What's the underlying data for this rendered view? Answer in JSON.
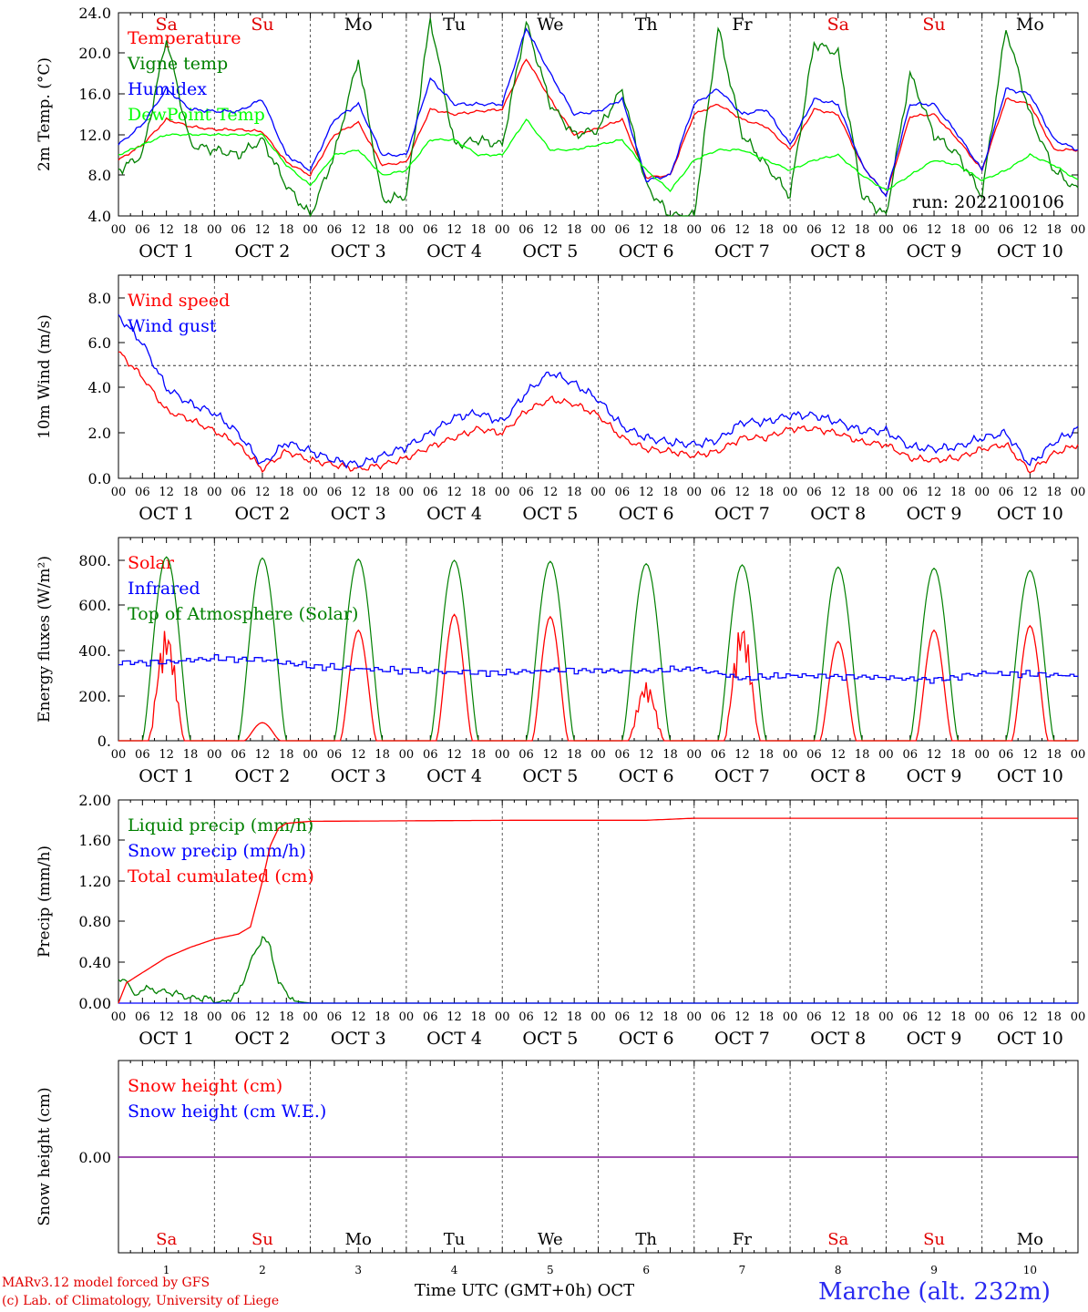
{
  "chart_data": [
    {
      "type": "line",
      "ylabel": "2m Temp. (°C)",
      "yticks": [
        "24.0",
        "20.0",
        "16.0",
        "12.0",
        "8.0",
        "4.0"
      ],
      "ylim": [
        4,
        24
      ],
      "run_label": "run: 2022100106",
      "grid": "vertical dotted lines at day boundaries",
      "legend_position": "top-left",
      "x_unit": "hours since Oct 1 00 UTC",
      "series": [
        {
          "name": "Temperature",
          "color": "#ff0000",
          "x": [
            0,
            6,
            12,
            18,
            24,
            30,
            36,
            42,
            48,
            54,
            60,
            66,
            72,
            78,
            84,
            90,
            96,
            102,
            108,
            114,
            120,
            126,
            132,
            138,
            144,
            150,
            156,
            162,
            168,
            174,
            180,
            186,
            192,
            198,
            204,
            210,
            216,
            222,
            228,
            234,
            240
          ],
          "y": [
            9.5,
            11.0,
            13.5,
            12.8,
            12.5,
            12.5,
            12.3,
            9.3,
            8.0,
            12.0,
            13.2,
            9.0,
            9.3,
            14.5,
            14.0,
            14.3,
            14.5,
            19.5,
            15.5,
            12.0,
            12.6,
            13.5,
            7.8,
            8.0,
            14.0,
            15.0,
            13.5,
            12.8,
            10.5,
            14.5,
            14.0,
            9.0,
            6.0,
            13.8,
            14.0,
            11.5,
            8.5,
            15.5,
            15.0,
            10.5,
            10.5
          ]
        },
        {
          "name": "Vigne temp",
          "color": "#008000",
          "x": [
            0,
            6,
            12,
            18,
            24,
            30,
            36,
            42,
            48,
            54,
            60,
            66,
            72,
            78,
            84,
            90,
            96,
            102,
            108,
            114,
            120,
            126,
            132,
            138,
            144,
            150,
            156,
            162,
            168,
            174,
            180,
            186,
            192,
            198,
            204,
            210,
            216,
            222,
            228,
            234,
            240
          ],
          "y": [
            8.5,
            10.0,
            21.5,
            11.0,
            10.5,
            10.0,
            11.5,
            7.0,
            4.0,
            10.0,
            19.5,
            5.5,
            6.0,
            23.5,
            11.0,
            11.5,
            11.0,
            23.0,
            15.0,
            12.0,
            12.5,
            16.5,
            7.0,
            4.0,
            4.0,
            22.5,
            12.0,
            9.0,
            6.0,
            21.0,
            20.0,
            6.0,
            4.0,
            18.0,
            12.0,
            10.0,
            6.0,
            22.5,
            14.0,
            8.5,
            6.5
          ]
        },
        {
          "name": "Humidex",
          "color": "#0000ff",
          "x": [
            0,
            6,
            12,
            18,
            24,
            30,
            36,
            42,
            48,
            54,
            60,
            66,
            72,
            78,
            84,
            90,
            96,
            102,
            108,
            114,
            120,
            126,
            132,
            138,
            144,
            150,
            156,
            162,
            168,
            174,
            180,
            186,
            192,
            198,
            204,
            210,
            216,
            222,
            228,
            234,
            240
          ],
          "y": [
            11.0,
            13.0,
            16.5,
            14.5,
            14.3,
            14.3,
            15.5,
            10.0,
            8.5,
            13.5,
            15.0,
            10.0,
            10.0,
            17.5,
            15.0,
            15.0,
            15.0,
            22.5,
            18.0,
            14.0,
            14.3,
            15.5,
            7.5,
            8.0,
            15.0,
            16.5,
            14.0,
            14.5,
            11.0,
            15.5,
            15.0,
            9.0,
            6.0,
            15.0,
            15.0,
            12.0,
            8.5,
            16.5,
            16.0,
            11.5,
            10.5
          ]
        },
        {
          "name": "DewPoint Temp",
          "color": "#00ff00",
          "x": [
            0,
            6,
            12,
            18,
            24,
            30,
            36,
            42,
            48,
            54,
            60,
            66,
            72,
            78,
            84,
            90,
            96,
            102,
            108,
            114,
            120,
            126,
            132,
            138,
            144,
            150,
            156,
            162,
            168,
            174,
            180,
            186,
            192,
            198,
            204,
            210,
            216,
            222,
            228,
            234,
            240
          ],
          "y": [
            10.0,
            11.0,
            12.0,
            12.0,
            12.0,
            12.0,
            12.0,
            9.0,
            7.0,
            10.0,
            10.5,
            8.0,
            8.5,
            11.5,
            11.5,
            10.0,
            10.0,
            13.5,
            10.5,
            10.5,
            11.0,
            11.5,
            8.5,
            6.5,
            9.5,
            10.5,
            10.5,
            9.5,
            8.5,
            9.5,
            10.0,
            8.0,
            6.5,
            8.0,
            9.5,
            9.0,
            7.5,
            8.5,
            10.0,
            9.0,
            7.5
          ]
        }
      ]
    },
    {
      "type": "line",
      "ylabel": "10m Wind (m/s)",
      "yticks": [
        "8.0",
        "6.0",
        "4.0",
        "2.0",
        "0.0"
      ],
      "ylim": [
        0,
        8.8
      ],
      "reference_line": 5.0,
      "legend_position": "top-left",
      "x_unit": "hours since Oct 1 00 UTC",
      "series": [
        {
          "name": "Wind speed",
          "color": "#ff0000",
          "x": [
            0,
            6,
            12,
            18,
            24,
            30,
            36,
            42,
            48,
            54,
            60,
            66,
            72,
            78,
            84,
            90,
            96,
            102,
            108,
            114,
            120,
            126,
            132,
            138,
            144,
            150,
            156,
            162,
            168,
            174,
            180,
            186,
            192,
            198,
            204,
            210,
            216,
            222,
            228,
            234,
            240
          ],
          "y": [
            5.6,
            4.5,
            3.0,
            2.6,
            2.1,
            1.5,
            0.4,
            1.2,
            0.8,
            0.6,
            0.4,
            0.6,
            0.9,
            1.4,
            1.8,
            2.2,
            2.0,
            3.0,
            3.5,
            3.3,
            2.8,
            1.8,
            1.3,
            1.2,
            1.0,
            1.2,
            1.8,
            1.8,
            2.2,
            2.2,
            2.0,
            1.6,
            1.5,
            0.9,
            0.8,
            0.9,
            1.3,
            1.5,
            0.3,
            1.1,
            1.5
          ]
        },
        {
          "name": "Wind gust",
          "color": "#0000ff",
          "x": [
            0,
            6,
            12,
            18,
            24,
            30,
            36,
            42,
            48,
            54,
            60,
            66,
            72,
            78,
            84,
            90,
            96,
            102,
            108,
            114,
            120,
            126,
            132,
            138,
            144,
            150,
            156,
            162,
            168,
            174,
            180,
            186,
            192,
            198,
            204,
            210,
            216,
            222,
            228,
            234,
            240
          ],
          "y": [
            7.2,
            6.0,
            4.0,
            3.3,
            2.9,
            2.0,
            0.6,
            1.6,
            1.2,
            0.8,
            0.6,
            1.0,
            1.4,
            2.0,
            2.7,
            2.9,
            2.5,
            3.8,
            4.7,
            4.2,
            3.5,
            2.3,
            1.8,
            1.6,
            1.5,
            1.7,
            2.5,
            2.5,
            2.8,
            2.8,
            2.5,
            2.1,
            2.1,
            1.4,
            1.3,
            1.4,
            1.8,
            2.0,
            0.6,
            1.6,
            2.2
          ]
        }
      ]
    },
    {
      "type": "line",
      "ylabel": "Energy fluxes (W/m²)",
      "yticks": [
        "800.",
        "600.",
        "400.",
        "200.",
        "0."
      ],
      "ylim": [
        0,
        880
      ],
      "legend_position": "top-left",
      "x_unit": "hours since Oct 1 00 UTC",
      "series": [
        {
          "name": "Solar",
          "color": "#ff0000",
          "peaks": [
            {
              "day": 1,
              "value": 500
            },
            {
              "day": 2,
              "value": 80
            },
            {
              "day": 3,
              "value": 490
            },
            {
              "day": 4,
              "value": 560
            },
            {
              "day": 5,
              "value": 550
            },
            {
              "day": 6,
              "value": 260
            },
            {
              "day": 7,
              "value": 530
            },
            {
              "day": 8,
              "value": 440
            },
            {
              "day": 9,
              "value": 490
            },
            {
              "day": 10,
              "value": 510
            }
          ]
        },
        {
          "name": "Infrared",
          "color": "#0000ff",
          "x": [
            0,
            12,
            24,
            36,
            48,
            60,
            72,
            84,
            96,
            108,
            120,
            132,
            144,
            156,
            168,
            180,
            192,
            204,
            216,
            228,
            240
          ],
          "y": [
            345,
            350,
            365,
            360,
            330,
            320,
            310,
            305,
            300,
            315,
            310,
            310,
            320,
            275,
            290,
            285,
            280,
            270,
            300,
            295,
            285
          ]
        },
        {
          "name": "Top of Atmosphere (Solar)",
          "color": "#008000",
          "peaks": [
            {
              "day": 1,
              "value": 815
            },
            {
              "day": 2,
              "value": 810
            },
            {
              "day": 3,
              "value": 805
            },
            {
              "day": 4,
              "value": 800
            },
            {
              "day": 5,
              "value": 795
            },
            {
              "day": 6,
              "value": 785
            },
            {
              "day": 7,
              "value": 780
            },
            {
              "day": 8,
              "value": 770
            },
            {
              "day": 9,
              "value": 765
            },
            {
              "day": 10,
              "value": 755
            }
          ]
        }
      ]
    },
    {
      "type": "line",
      "ylabel": "Precip (mm/h)",
      "yticks": [
        "2.00",
        "1.60",
        "1.20",
        "0.80",
        "0.40",
        "0.00"
      ],
      "ylim": [
        0,
        2
      ],
      "legend_position": "top-left",
      "x_unit": "hours since Oct 1 00 UTC",
      "series": [
        {
          "name": "Liquid precip (mm/h)",
          "color": "#008000",
          "x": [
            0,
            2,
            4,
            6,
            10,
            14,
            18,
            22,
            26,
            30,
            33,
            36,
            38,
            40,
            44,
            48,
            240
          ],
          "y": [
            0.2,
            0.25,
            0.05,
            0.15,
            0.12,
            0.1,
            0.05,
            0.05,
            0.0,
            0.1,
            0.4,
            0.65,
            0.55,
            0.2,
            0.02,
            0.0,
            0.0
          ]
        },
        {
          "name": "Snow precip (mm/h)",
          "color": "#0000ff",
          "x": [
            0,
            240
          ],
          "y": [
            0,
            0
          ]
        },
        {
          "name": "Total cumulated (cm)",
          "color": "#ff0000",
          "x": [
            0,
            2,
            6,
            12,
            18,
            24,
            30,
            33,
            36,
            38,
            40,
            42,
            48,
            100,
            132,
            144,
            240
          ],
          "y": [
            0,
            0.2,
            0.3,
            0.45,
            0.55,
            0.63,
            0.68,
            0.75,
            1.2,
            1.55,
            1.72,
            1.77,
            1.79,
            1.8,
            1.8,
            1.82,
            1.82
          ]
        }
      ]
    },
    {
      "type": "line",
      "ylabel": "Snow height (cm)",
      "yticks": [
        "0.00"
      ],
      "legend_position": "top-left",
      "x_unit": "hours since Oct 1 00 UTC",
      "series": [
        {
          "name": "Snow height (cm)",
          "color": "#ff0000",
          "x": [
            0,
            240
          ],
          "y": [
            0,
            0
          ]
        },
        {
          "name": "Snow height (cm W.E.)",
          "color": "#0000ff",
          "x": [
            0,
            240
          ],
          "y": [
            0,
            0
          ]
        }
      ]
    }
  ],
  "x_axis": {
    "hour_ticks": [
      "00",
      "06",
      "12",
      "18"
    ],
    "end_tick": "00",
    "date_labels": [
      "OCT  1",
      "OCT  2",
      "OCT  3",
      "OCT  4",
      "OCT  5",
      "OCT  6",
      "OCT  7",
      "OCT  8",
      "OCT  9",
      "OCT 10"
    ],
    "weekdays": [
      "Sa",
      "Su",
      "Mo",
      "Tu",
      "We",
      "Th",
      "Fr",
      "Sa",
      "Su",
      "Mo"
    ],
    "weekend_color": "#e00000",
    "weekday_color": "#000000",
    "day_numbers": [
      "1",
      "2",
      "3",
      "4",
      "5",
      "6",
      "7",
      "8",
      "9",
      "10"
    ]
  },
  "footer": {
    "model": "MARv3.12 model forced by GFS",
    "credit": "(c) Lab. of Climatology, University of Liege",
    "xlabel": "Time UTC (GMT+0h) OCT",
    "station": "Marche (alt. 232m)"
  }
}
